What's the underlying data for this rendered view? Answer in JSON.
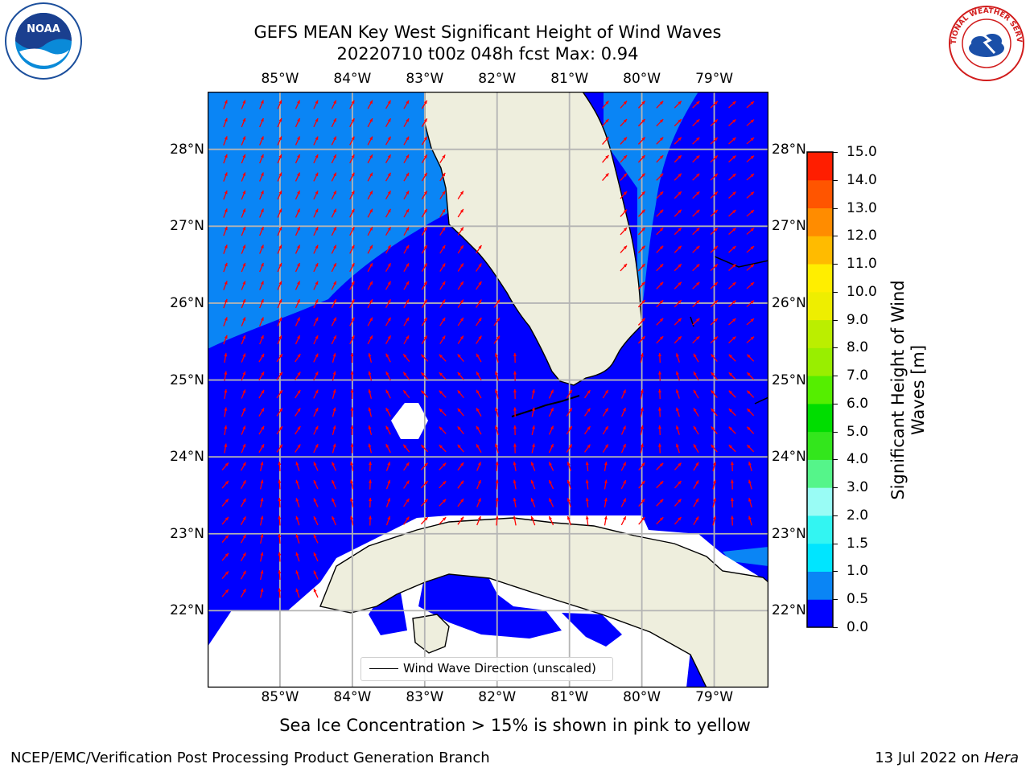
{
  "header": {
    "title_line1": "GEFS MEAN Key West Significant Height of Wind Waves",
    "title_line2": "20220710 t00z 048h fcst   Max: 0.94"
  },
  "logos": {
    "left": {
      "name": "NOAA",
      "text": "NOAA"
    },
    "right": {
      "name": "National Weather Service",
      "text": "NATIONAL WEATHER SERVICE"
    }
  },
  "map": {
    "lon_ticks": [
      {
        "lon": -85,
        "label": "85°W"
      },
      {
        "lon": -84,
        "label": "84°W"
      },
      {
        "lon": -83,
        "label": "83°W"
      },
      {
        "lon": -82,
        "label": "82°W"
      },
      {
        "lon": -81,
        "label": "81°W"
      },
      {
        "lon": -80,
        "label": "80°W"
      },
      {
        "lon": -79,
        "label": "79°W"
      }
    ],
    "lat_ticks": [
      {
        "lat": 28,
        "label": "28°N"
      },
      {
        "lat": 27,
        "label": "27°N"
      },
      {
        "lat": 26,
        "label": "26°N"
      },
      {
        "lat": 25,
        "label": "25°N"
      },
      {
        "lat": 24,
        "label": "24°N"
      },
      {
        "lat": 23,
        "label": "23°N"
      },
      {
        "lat": 22,
        "label": "22°N"
      }
    ],
    "extent": {
      "lon_min": -86.0,
      "lon_max": -78.25,
      "lat_min": 21.0,
      "lat_max": 28.75
    },
    "grid": true,
    "colors": {
      "ocean_low": "#0000ff",
      "ocean_mid": "#0a85f5",
      "land": "#eeeedd",
      "no_data": "#ffffff",
      "arrows": "#ff0000",
      "coast": "#000000"
    },
    "legend_label": "Wind Wave Direction (unscaled)"
  },
  "colorbar": {
    "label": "Significant Height of Wind Waves [m]",
    "label_line1": "Significant Height of Wind",
    "label_line2": "Waves [m]",
    "levels": [
      0.0,
      0.5,
      1.0,
      1.5,
      2.0,
      3.0,
      4.0,
      5.0,
      6.0,
      7.0,
      8.0,
      9.0,
      10.0,
      11.0,
      12.0,
      13.0,
      14.0,
      15.0
    ],
    "tick_labels": [
      "0.0",
      "0.5",
      "1.0",
      "1.5",
      "2.0",
      "3.0",
      "4.0",
      "5.0",
      "6.0",
      "7.0",
      "8.0",
      "9.0",
      "10.0",
      "11.0",
      "12.0",
      "13.0",
      "14.0",
      "15.0"
    ],
    "colors": [
      "#0000ff",
      "#0a85f5",
      "#00e5ff",
      "#33f5f2",
      "#99fcf5",
      "#55f58a",
      "#33e61c",
      "#00dd00",
      "#55ee00",
      "#99ee00",
      "#bbee00",
      "#eeee00",
      "#ffee00",
      "#ffbb00",
      "#ff8c00",
      "#ff5500",
      "#ff1e00"
    ]
  },
  "note": "Sea Ice Concentration > 15% is shown in pink to yellow",
  "footer": {
    "left": "NCEP/EMC/Verification Post Processing Product Generation Branch",
    "right_date": "13 Jul 2022 on ",
    "right_host": "Hera"
  }
}
